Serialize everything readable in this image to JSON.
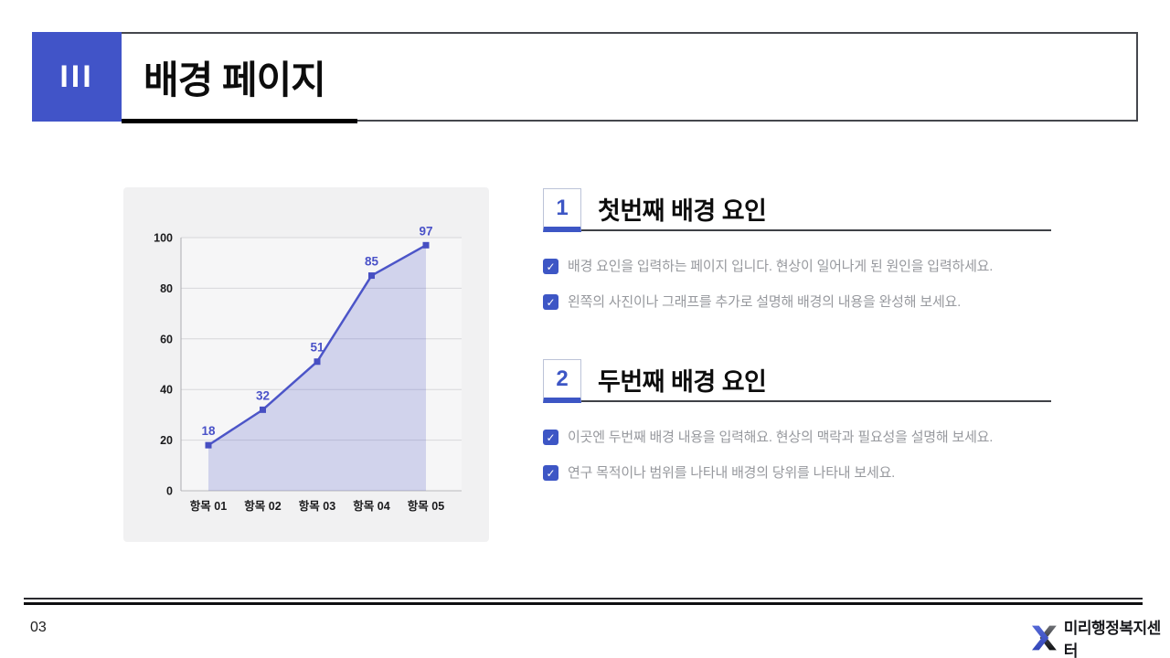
{
  "header": {
    "section_number": "III",
    "title": "배경 페이지"
  },
  "chart_data": {
    "type": "area",
    "categories": [
      "항목 01",
      "항목 02",
      "항목 03",
      "항목 04",
      "항목 05"
    ],
    "values": [
      18,
      32,
      51,
      85,
      97
    ],
    "y_ticks": [
      0,
      20,
      40,
      60,
      80,
      100
    ],
    "ylim": [
      0,
      100
    ],
    "grid": true,
    "legend": "none",
    "line_color": "#4c55c8",
    "marker_color": "#474fc2",
    "value_label_color": "#4a52c8",
    "fill_color": "#4c55c8",
    "fill_opacity": 0.22,
    "grid_color": "#d7d7da",
    "baseline_color": "#b9b9bc",
    "axis_color": "#acacb0",
    "tick_label_color": "#1b1b1d",
    "plot_bg": "#f6f6f7",
    "panel_bg": "#f1f1f2"
  },
  "sections": [
    {
      "number": "1",
      "title": "첫번째 배경 요인",
      "bullets": [
        "배경 요인을 입력하는 페이지 입니다. 현상이 일어나게 된 원인을 입력하세요.",
        "왼쪽의 사진이나 그래프를 추가로 설명해 배경의 내용을 완성해 보세요."
      ]
    },
    {
      "number": "2",
      "title": "두번째 배경 요인",
      "bullets": [
        "이곳엔 두번째 배경 내용을 입력해요. 현상의 맥락과 필요성을 설명해 보세요.",
        "연구 목적이나 범위를 나타내 배경의 당위를 나타내 보세요."
      ]
    }
  ],
  "footer": {
    "page_number": "03",
    "brand": "미리행정복지센터"
  },
  "icons": {
    "check": "✓"
  },
  "colors": {
    "primary_blue": "#4154c8",
    "checkbox_blue": "#3d56c5",
    "logo_blue": "#3e57c9",
    "logo_dark": "#1a1b1f"
  }
}
